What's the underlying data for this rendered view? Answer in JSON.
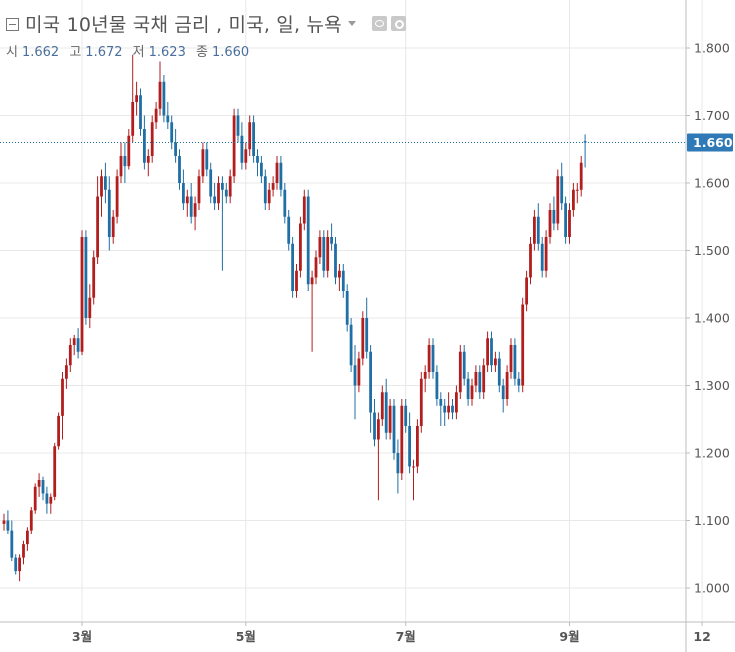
{
  "legend": {
    "title": "미국 10년물 국채 금리 , 미국, 일, 뉴욕",
    "open_label": "시",
    "open_value": "1.662",
    "high_label": "고",
    "high_value": "1.672",
    "low_label": "저",
    "low_value": "1.623",
    "close_label": "종",
    "close_value": "1.660"
  },
  "colors": {
    "up": "#b21e1e",
    "down": "#1f6fa5",
    "grid": "#e8e8e8",
    "axis_text": "#555555",
    "price_line": "#1f6fa5",
    "price_badge": "#2e79b6"
  },
  "chart_data": {
    "type": "candlestick",
    "y_ticks": [
      "1.000",
      "1.100",
      "1.200",
      "1.300",
      "1.400",
      "1.500",
      "1.600",
      "1.700",
      "1.800"
    ],
    "x_ticks": [
      "3월",
      "5월",
      "7월",
      "9월",
      "12"
    ],
    "x_tick_index": [
      20,
      62,
      103,
      145,
      179
    ],
    "ylim": [
      0.945,
      1.86
    ],
    "grid": true,
    "current_price": "1.660",
    "current_price_value": 1.66,
    "ohlc": [
      [
        1.095,
        1.11,
        1.085,
        1.1
      ],
      [
        1.1,
        1.115,
        1.08,
        1.085
      ],
      [
        1.085,
        1.1,
        1.04,
        1.045
      ],
      [
        1.045,
        1.05,
        1.02,
        1.025
      ],
      [
        1.025,
        1.05,
        1.01,
        1.045
      ],
      [
        1.045,
        1.07,
        1.035,
        1.065
      ],
      [
        1.065,
        1.09,
        1.055,
        1.085
      ],
      [
        1.085,
        1.12,
        1.08,
        1.115
      ],
      [
        1.115,
        1.155,
        1.11,
        1.15
      ],
      [
        1.15,
        1.17,
        1.135,
        1.16
      ],
      [
        1.16,
        1.165,
        1.13,
        1.14
      ],
      [
        1.14,
        1.15,
        1.11,
        1.125
      ],
      [
        1.125,
        1.14,
        1.11,
        1.135
      ],
      [
        1.135,
        1.215,
        1.13,
        1.21
      ],
      [
        1.21,
        1.26,
        1.205,
        1.255
      ],
      [
        1.255,
        1.32,
        1.22,
        1.31
      ],
      [
        1.31,
        1.34,
        1.295,
        1.33
      ],
      [
        1.33,
        1.37,
        1.32,
        1.36
      ],
      [
        1.36,
        1.375,
        1.345,
        1.37
      ],
      [
        1.37,
        1.385,
        1.34,
        1.35
      ],
      [
        1.35,
        1.53,
        1.345,
        1.52
      ],
      [
        1.52,
        1.53,
        1.39,
        1.4
      ],
      [
        1.4,
        1.45,
        1.385,
        1.43
      ],
      [
        1.43,
        1.5,
        1.42,
        1.49
      ],
      [
        1.49,
        1.61,
        1.48,
        1.58
      ],
      [
        1.58,
        1.62,
        1.55,
        1.61
      ],
      [
        1.61,
        1.63,
        1.57,
        1.59
      ],
      [
        1.59,
        1.61,
        1.5,
        1.52
      ],
      [
        1.52,
        1.56,
        1.51,
        1.55
      ],
      [
        1.55,
        1.62,
        1.54,
        1.61
      ],
      [
        1.61,
        1.66,
        1.6,
        1.64
      ],
      [
        1.64,
        1.66,
        1.6,
        1.625
      ],
      [
        1.625,
        1.68,
        1.62,
        1.67
      ],
      [
        1.67,
        1.79,
        1.66,
        1.72
      ],
      [
        1.72,
        1.75,
        1.7,
        1.73
      ],
      [
        1.73,
        1.74,
        1.67,
        1.68
      ],
      [
        1.68,
        1.7,
        1.62,
        1.63
      ],
      [
        1.63,
        1.65,
        1.61,
        1.64
      ],
      [
        1.64,
        1.7,
        1.63,
        1.69
      ],
      [
        1.69,
        1.72,
        1.68,
        1.71
      ],
      [
        1.71,
        1.78,
        1.7,
        1.75
      ],
      [
        1.75,
        1.76,
        1.69,
        1.7
      ],
      [
        1.7,
        1.72,
        1.68,
        1.69
      ],
      [
        1.69,
        1.7,
        1.65,
        1.66
      ],
      [
        1.66,
        1.68,
        1.63,
        1.64
      ],
      [
        1.64,
        1.65,
        1.59,
        1.6
      ],
      [
        1.6,
        1.62,
        1.56,
        1.57
      ],
      [
        1.57,
        1.59,
        1.55,
        1.58
      ],
      [
        1.58,
        1.6,
        1.54,
        1.55
      ],
      [
        1.55,
        1.58,
        1.53,
        1.57
      ],
      [
        1.57,
        1.62,
        1.56,
        1.61
      ],
      [
        1.61,
        1.66,
        1.6,
        1.65
      ],
      [
        1.65,
        1.66,
        1.61,
        1.62
      ],
      [
        1.62,
        1.63,
        1.57,
        1.58
      ],
      [
        1.58,
        1.6,
        1.56,
        1.57
      ],
      [
        1.57,
        1.61,
        1.56,
        1.6
      ],
      [
        1.6,
        1.61,
        1.47,
        1.59
      ],
      [
        1.59,
        1.6,
        1.57,
        1.58
      ],
      [
        1.58,
        1.62,
        1.57,
        1.61
      ],
      [
        1.61,
        1.71,
        1.6,
        1.7
      ],
      [
        1.7,
        1.71,
        1.66,
        1.67
      ],
      [
        1.67,
        1.69,
        1.62,
        1.63
      ],
      [
        1.63,
        1.66,
        1.62,
        1.65
      ],
      [
        1.65,
        1.7,
        1.64,
        1.69
      ],
      [
        1.69,
        1.7,
        1.63,
        1.64
      ],
      [
        1.64,
        1.65,
        1.61,
        1.63
      ],
      [
        1.63,
        1.64,
        1.6,
        1.61
      ],
      [
        1.61,
        1.62,
        1.56,
        1.57
      ],
      [
        1.57,
        1.6,
        1.56,
        1.59
      ],
      [
        1.59,
        1.61,
        1.58,
        1.6
      ],
      [
        1.6,
        1.64,
        1.59,
        1.63
      ],
      [
        1.63,
        1.64,
        1.58,
        1.59
      ],
      [
        1.59,
        1.6,
        1.54,
        1.55
      ],
      [
        1.55,
        1.56,
        1.5,
        1.51
      ],
      [
        1.51,
        1.52,
        1.43,
        1.44
      ],
      [
        1.44,
        1.48,
        1.43,
        1.47
      ],
      [
        1.47,
        1.55,
        1.46,
        1.54
      ],
      [
        1.54,
        1.59,
        1.53,
        1.58
      ],
      [
        1.58,
        1.59,
        1.44,
        1.45
      ],
      [
        1.45,
        1.47,
        1.35,
        1.46
      ],
      [
        1.46,
        1.5,
        1.45,
        1.49
      ],
      [
        1.49,
        1.53,
        1.48,
        1.52
      ],
      [
        1.52,
        1.53,
        1.46,
        1.47
      ],
      [
        1.47,
        1.53,
        1.46,
        1.52
      ],
      [
        1.52,
        1.54,
        1.5,
        1.51
      ],
      [
        1.51,
        1.52,
        1.45,
        1.46
      ],
      [
        1.46,
        1.48,
        1.44,
        1.47
      ],
      [
        1.47,
        1.48,
        1.43,
        1.44
      ],
      [
        1.44,
        1.45,
        1.38,
        1.39
      ],
      [
        1.39,
        1.4,
        1.32,
        1.33
      ],
      [
        1.33,
        1.36,
        1.25,
        1.3
      ],
      [
        1.3,
        1.35,
        1.29,
        1.34
      ],
      [
        1.34,
        1.41,
        1.33,
        1.4
      ],
      [
        1.4,
        1.43,
        1.34,
        1.35
      ],
      [
        1.35,
        1.36,
        1.23,
        1.26
      ],
      [
        1.26,
        1.28,
        1.21,
        1.22
      ],
      [
        1.22,
        1.26,
        1.13,
        1.25
      ],
      [
        1.25,
        1.3,
        1.24,
        1.29
      ],
      [
        1.29,
        1.31,
        1.22,
        1.23
      ],
      [
        1.23,
        1.28,
        1.22,
        1.27
      ],
      [
        1.27,
        1.28,
        1.19,
        1.2
      ],
      [
        1.2,
        1.22,
        1.14,
        1.17
      ],
      [
        1.17,
        1.28,
        1.16,
        1.27
      ],
      [
        1.27,
        1.28,
        1.23,
        1.24
      ],
      [
        1.24,
        1.26,
        1.17,
        1.18
      ],
      [
        1.18,
        1.19,
        1.13,
        1.18
      ],
      [
        1.18,
        1.25,
        1.17,
        1.24
      ],
      [
        1.24,
        1.32,
        1.23,
        1.31
      ],
      [
        1.31,
        1.33,
        1.29,
        1.32
      ],
      [
        1.32,
        1.37,
        1.31,
        1.36
      ],
      [
        1.36,
        1.37,
        1.31,
        1.32
      ],
      [
        1.32,
        1.33,
        1.27,
        1.28
      ],
      [
        1.28,
        1.29,
        1.24,
        1.27
      ],
      [
        1.27,
        1.28,
        1.24,
        1.26
      ],
      [
        1.26,
        1.29,
        1.25,
        1.27
      ],
      [
        1.27,
        1.28,
        1.25,
        1.26
      ],
      [
        1.26,
        1.3,
        1.25,
        1.29
      ],
      [
        1.29,
        1.36,
        1.28,
        1.35
      ],
      [
        1.35,
        1.36,
        1.3,
        1.31
      ],
      [
        1.31,
        1.32,
        1.27,
        1.28
      ],
      [
        1.28,
        1.31,
        1.27,
        1.3
      ],
      [
        1.3,
        1.33,
        1.29,
        1.32
      ],
      [
        1.32,
        1.33,
        1.28,
        1.29
      ],
      [
        1.29,
        1.34,
        1.28,
        1.33
      ],
      [
        1.33,
        1.38,
        1.32,
        1.37
      ],
      [
        1.37,
        1.38,
        1.32,
        1.33
      ],
      [
        1.33,
        1.35,
        1.32,
        1.34
      ],
      [
        1.34,
        1.35,
        1.29,
        1.3
      ],
      [
        1.3,
        1.31,
        1.26,
        1.28
      ],
      [
        1.28,
        1.33,
        1.27,
        1.32
      ],
      [
        1.32,
        1.37,
        1.31,
        1.36
      ],
      [
        1.36,
        1.37,
        1.3,
        1.31
      ],
      [
        1.31,
        1.32,
        1.29,
        1.3
      ],
      [
        1.3,
        1.43,
        1.29,
        1.42
      ],
      [
        1.42,
        1.47,
        1.41,
        1.46
      ],
      [
        1.46,
        1.52,
        1.45,
        1.51
      ],
      [
        1.51,
        1.56,
        1.5,
        1.55
      ],
      [
        1.55,
        1.57,
        1.5,
        1.51
      ],
      [
        1.51,
        1.52,
        1.46,
        1.47
      ],
      [
        1.47,
        1.53,
        1.46,
        1.52
      ],
      [
        1.52,
        1.57,
        1.51,
        1.56
      ],
      [
        1.56,
        1.58,
        1.53,
        1.54
      ],
      [
        1.54,
        1.62,
        1.53,
        1.61
      ],
      [
        1.61,
        1.63,
        1.56,
        1.57
      ],
      [
        1.57,
        1.58,
        1.51,
        1.52
      ],
      [
        1.52,
        1.57,
        1.51,
        1.56
      ],
      [
        1.56,
        1.6,
        1.55,
        1.59
      ],
      [
        1.59,
        1.6,
        1.57,
        1.59
      ],
      [
        1.59,
        1.64,
        1.58,
        1.63
      ],
      [
        1.662,
        1.672,
        1.623,
        1.66
      ]
    ]
  }
}
